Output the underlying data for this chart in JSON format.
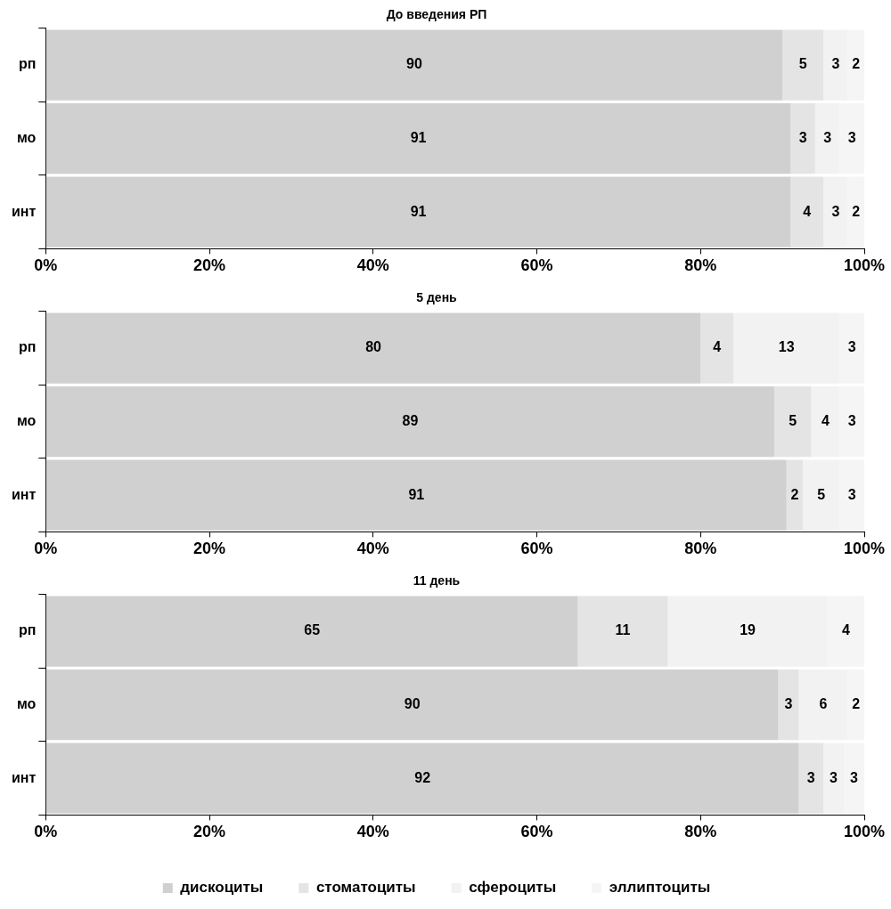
{
  "chart_data": [
    {
      "type": "bar",
      "orientation": "horizontal",
      "stacked": true,
      "title": "До введения РП",
      "categories": [
        "рп",
        "мо",
        "инт"
      ],
      "xlim": [
        0,
        100
      ],
      "xticks": [
        {
          "value": 0,
          "label": "0%"
        },
        {
          "value": 20,
          "label": "20%"
        },
        {
          "value": 40,
          "label": "40%"
        },
        {
          "value": 60,
          "label": "60%"
        },
        {
          "value": 80,
          "label": "80%"
        },
        {
          "value": 100,
          "label": "100%"
        }
      ],
      "grid": false,
      "legend": false,
      "data_labels": true,
      "series": [
        {
          "color": "#d0d0d0",
          "values": [
            90,
            91,
            91
          ]
        },
        {
          "color": "#e4e4e4",
          "values": [
            5,
            3,
            4
          ]
        },
        {
          "color": "#f2f2f2",
          "values": [
            3,
            3,
            3
          ]
        },
        {
          "color": "#f5f5f5",
          "values": [
            2,
            3,
            2
          ]
        }
      ]
    },
    {
      "type": "bar",
      "orientation": "horizontal",
      "stacked": true,
      "title": "5 день",
      "categories": [
        "рп",
        "мо",
        "инт"
      ],
      "xlim": [
        0,
        100
      ],
      "xticks": [
        {
          "value": 0,
          "label": "0%"
        },
        {
          "value": 20,
          "label": "20%"
        },
        {
          "value": 40,
          "label": "40%"
        },
        {
          "value": 60,
          "label": "60%"
        },
        {
          "value": 80,
          "label": "80%"
        },
        {
          "value": 100,
          "label": "100%"
        }
      ],
      "grid": false,
      "legend": false,
      "series": [
        {
          "color": "#d0d0d0",
          "values": [
            80,
            89,
            90.5
          ],
          "value_labels": [
            "80",
            "89",
            "91"
          ]
        },
        {
          "color": "#e4e4e4",
          "values": [
            4,
            4.5,
            2
          ],
          "value_labels": [
            "4",
            "5",
            "2"
          ]
        },
        {
          "color": "#f2f2f2",
          "values": [
            13,
            3.5,
            4.5
          ],
          "value_labels": [
            "13",
            "4",
            "5"
          ]
        },
        {
          "color": "#f5f5f5",
          "values": [
            3,
            3,
            3
          ],
          "value_labels": [
            "3",
            "3",
            "3"
          ]
        }
      ]
    },
    {
      "type": "bar",
      "orientation": "horizontal",
      "stacked": true,
      "title": "11 день",
      "categories": [
        "рп",
        "мо",
        "инт"
      ],
      "xlim": [
        0,
        100
      ],
      "xticks": [
        {
          "value": 0,
          "label": "0%"
        },
        {
          "value": 20,
          "label": "20%"
        },
        {
          "value": 40,
          "label": "40%"
        },
        {
          "value": 60,
          "label": "60%"
        },
        {
          "value": 80,
          "label": "80%"
        },
        {
          "value": 100,
          "label": "100%"
        }
      ],
      "grid": false,
      "legend": "bottom",
      "series": [
        {
          "name": "дискоциты",
          "color": "#d0d0d0",
          "values": [
            65,
            89.5,
            92
          ],
          "value_labels": [
            "65",
            "90",
            "92"
          ]
        },
        {
          "name": "стоматоциты",
          "color": "#e4e4e4",
          "values": [
            11,
            2.5,
            3
          ],
          "value_labels": [
            "11",
            "3",
            "3"
          ]
        },
        {
          "name": "сфероциты",
          "color": "#f2f2f2",
          "values": [
            19.5,
            6,
            2.5
          ],
          "value_labels": [
            "19",
            "6",
            "3"
          ]
        },
        {
          "name": "эллиптоциты",
          "color": "#f5f5f5",
          "values": [
            4.5,
            2,
            2.5
          ],
          "value_labels": [
            "4",
            "2",
            "3"
          ]
        }
      ]
    }
  ]
}
